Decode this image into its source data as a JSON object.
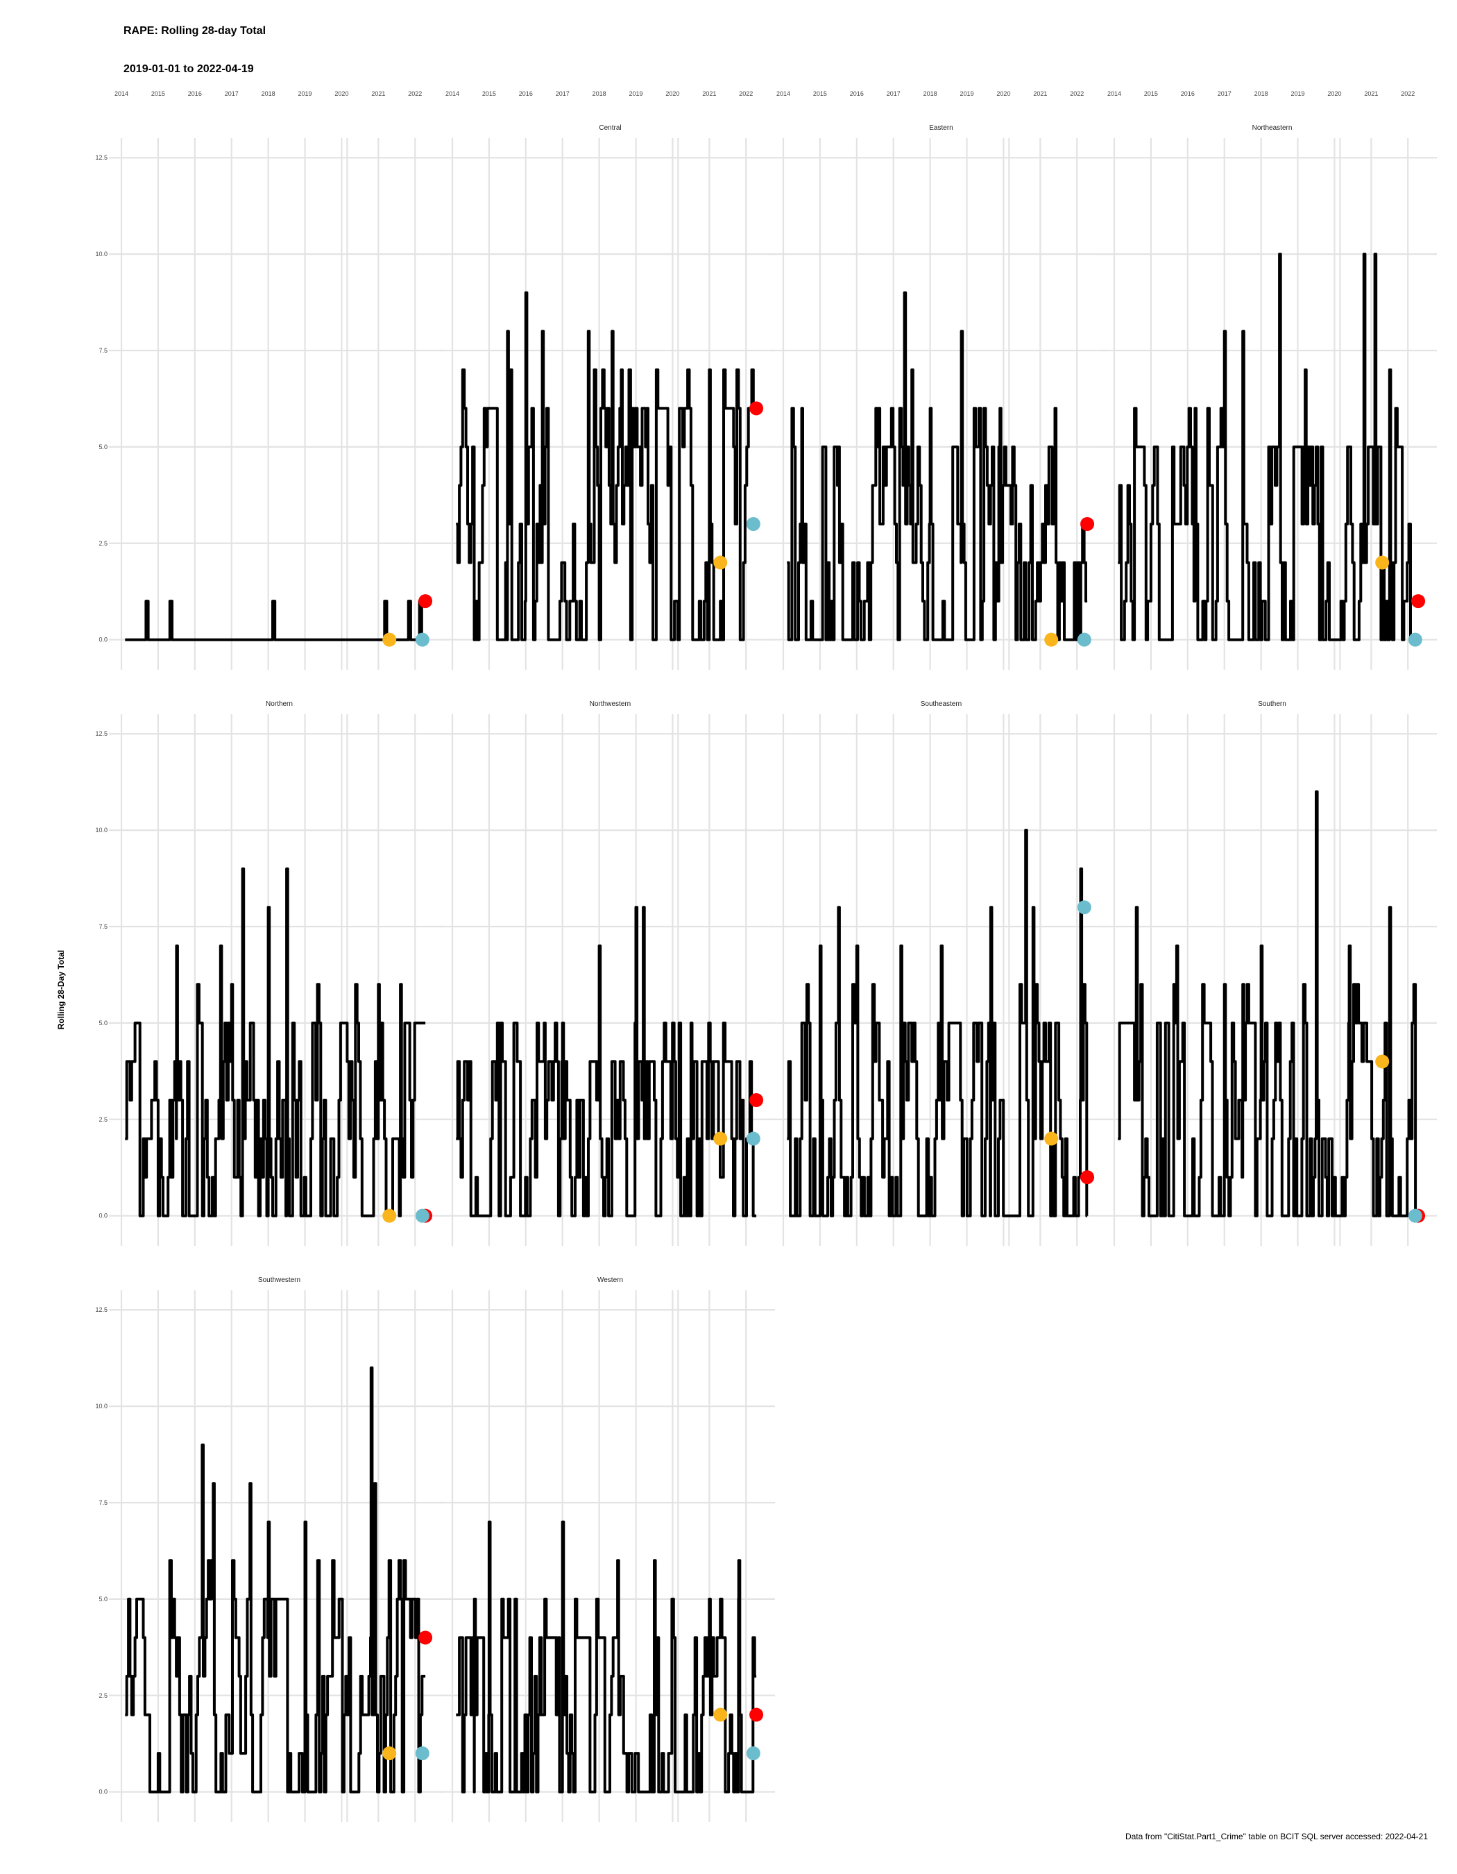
{
  "chart_data": {
    "type": "line",
    "title": "RAPE: Rolling 28-day Total",
    "subtitle": "2019-01-01 to 2022-04-19",
    "ylabel": "Rolling 28-Day Total",
    "caption": "Data from \"CitiStat.Part1_Crime\" table on BCIT SQL server accessed: 2022-04-21",
    "x_tick_labels": [
      "2014",
      "2015",
      "2016",
      "2017",
      "2018",
      "2019",
      "2020",
      "2021",
      "2022"
    ],
    "y_tick_labels": [
      "0.0",
      "2.5",
      "5.0",
      "7.5",
      "10.0",
      "12.5"
    ],
    "xlim": [
      2014.0,
      2022.6
    ],
    "ylim": [
      -0.6,
      12.9
    ],
    "grid": true,
    "marker_colors": {
      "orange": "#f9b51b",
      "red": "#ff0000",
      "blue": "#6bbccc"
    },
    "panels": [
      {
        "name": "",
        "min": 0,
        "max": 0,
        "spikes": [
          [
            2014.7,
            1
          ],
          [
            2015.35,
            1
          ],
          [
            2018.15,
            1
          ],
          [
            2021.2,
            1
          ],
          [
            2021.85,
            1
          ],
          [
            2022.15,
            1
          ]
        ],
        "points": {
          "orange": [
            2021.3,
            0
          ],
          "blue": [
            2022.2,
            0
          ],
          "red": [
            2022.28,
            1
          ]
        }
      },
      {
        "name": "Central",
        "min": 0,
        "max": 5,
        "spikes": [
          [
            2015.5,
            8
          ],
          [
            2016.0,
            9
          ],
          [
            2016.45,
            8
          ],
          [
            2017.7,
            8
          ],
          [
            2018.35,
            8
          ],
          [
            2018.6,
            7
          ],
          [
            2019.3,
            6
          ],
          [
            2021.0,
            7
          ],
          [
            2022.28,
            6
          ]
        ],
        "points": {
          "orange": [
            2021.3,
            2
          ],
          "blue": [
            2022.2,
            3
          ],
          "red": [
            2022.28,
            6
          ]
        }
      },
      {
        "name": "Eastern",
        "min": 0,
        "max": 4,
        "spikes": [
          [
            2014.5,
            6
          ],
          [
            2015.5,
            5
          ],
          [
            2016.6,
            6
          ],
          [
            2017.3,
            9
          ],
          [
            2017.5,
            7
          ],
          [
            2018.0,
            6
          ],
          [
            2018.85,
            8
          ],
          [
            2019.9,
            6
          ],
          [
            2021.4,
            6
          ]
        ],
        "points": {
          "orange": [
            2021.3,
            0
          ],
          "blue": [
            2022.2,
            0
          ],
          "red": [
            2022.28,
            3
          ]
        }
      },
      {
        "name": "Northeastern",
        "min": 0,
        "max": 4,
        "spikes": [
          [
            2017.0,
            8
          ],
          [
            2017.5,
            8
          ],
          [
            2018.5,
            10
          ],
          [
            2019.2,
            7
          ],
          [
            2020.8,
            10
          ],
          [
            2021.1,
            10
          ],
          [
            2021.5,
            7
          ],
          [
            2016.2,
            6
          ]
        ],
        "points": {
          "orange": [
            2021.3,
            2
          ],
          "blue": [
            2022.2,
            0
          ],
          "red": [
            2022.28,
            1
          ]
        }
      },
      {
        "name": "Northern",
        "min": 0,
        "max": 4,
        "spikes": [
          [
            2015.5,
            7
          ],
          [
            2016.7,
            7
          ],
          [
            2017.3,
            9
          ],
          [
            2018.0,
            8
          ],
          [
            2018.5,
            9
          ],
          [
            2021.0,
            6
          ],
          [
            2021.6,
            6
          ],
          [
            2017.0,
            6
          ]
        ],
        "points": {
          "orange": [
            2021.3,
            0
          ],
          "blue": [
            2022.2,
            0
          ],
          "red": [
            2022.28,
            0
          ]
        }
      },
      {
        "name": "Northwestern",
        "min": 0,
        "max": 3,
        "spikes": [
          [
            2017.0,
            5
          ],
          [
            2018.0,
            7
          ],
          [
            2019.0,
            8
          ],
          [
            2019.2,
            8
          ],
          [
            2016.5,
            5
          ],
          [
            2020.5,
            5
          ]
        ],
        "points": {
          "orange": [
            2021.3,
            2
          ],
          "blue": [
            2022.2,
            2
          ],
          "red": [
            2022.28,
            3
          ]
        }
      },
      {
        "name": "Southeastern",
        "min": 0,
        "max": 4,
        "spikes": [
          [
            2015.0,
            7
          ],
          [
            2015.5,
            8
          ],
          [
            2016.0,
            7
          ],
          [
            2017.2,
            7
          ],
          [
            2018.3,
            7
          ],
          [
            2019.65,
            8
          ],
          [
            2020.6,
            10
          ],
          [
            2020.8,
            8
          ],
          [
            2022.1,
            9
          ]
        ],
        "points": {
          "orange": [
            2021.3,
            2
          ],
          "blue": [
            2022.2,
            8
          ],
          "red": [
            2022.28,
            1
          ]
        }
      },
      {
        "name": "Southern",
        "min": 0,
        "max": 4,
        "spikes": [
          [
            2014.6,
            8
          ],
          [
            2015.7,
            7
          ],
          [
            2017.0,
            6
          ],
          [
            2017.5,
            6
          ],
          [
            2019.5,
            11
          ],
          [
            2020.4,
            7
          ],
          [
            2021.5,
            8
          ],
          [
            2018.0,
            7
          ]
        ],
        "points": {
          "orange": [
            2021.3,
            4
          ],
          "blue": [
            2022.2,
            0
          ],
          "red": [
            2022.28,
            0
          ]
        }
      },
      {
        "name": "Southwestern",
        "min": 0,
        "max": 4,
        "spikes": [
          [
            2016.2,
            9
          ],
          [
            2016.5,
            8
          ],
          [
            2017.5,
            8
          ],
          [
            2018.0,
            7
          ],
          [
            2020.8,
            11
          ],
          [
            2020.9,
            8
          ],
          [
            2019.0,
            7
          ]
        ],
        "points": {
          "orange": [
            2021.3,
            1
          ],
          "blue": [
            2022.2,
            1
          ],
          "red": [
            2022.28,
            4
          ]
        }
      },
      {
        "name": "Western",
        "min": 0,
        "max": 3,
        "spikes": [
          [
            2014.6,
            5
          ],
          [
            2015.0,
            7
          ],
          [
            2017.0,
            7
          ],
          [
            2018.5,
            6
          ],
          [
            2019.5,
            6
          ],
          [
            2021.0,
            5
          ],
          [
            2021.8,
            6
          ]
        ],
        "points": {
          "orange": [
            2021.3,
            2
          ],
          "blue": [
            2022.2,
            1
          ],
          "red": [
            2022.28,
            2
          ]
        }
      }
    ]
  }
}
